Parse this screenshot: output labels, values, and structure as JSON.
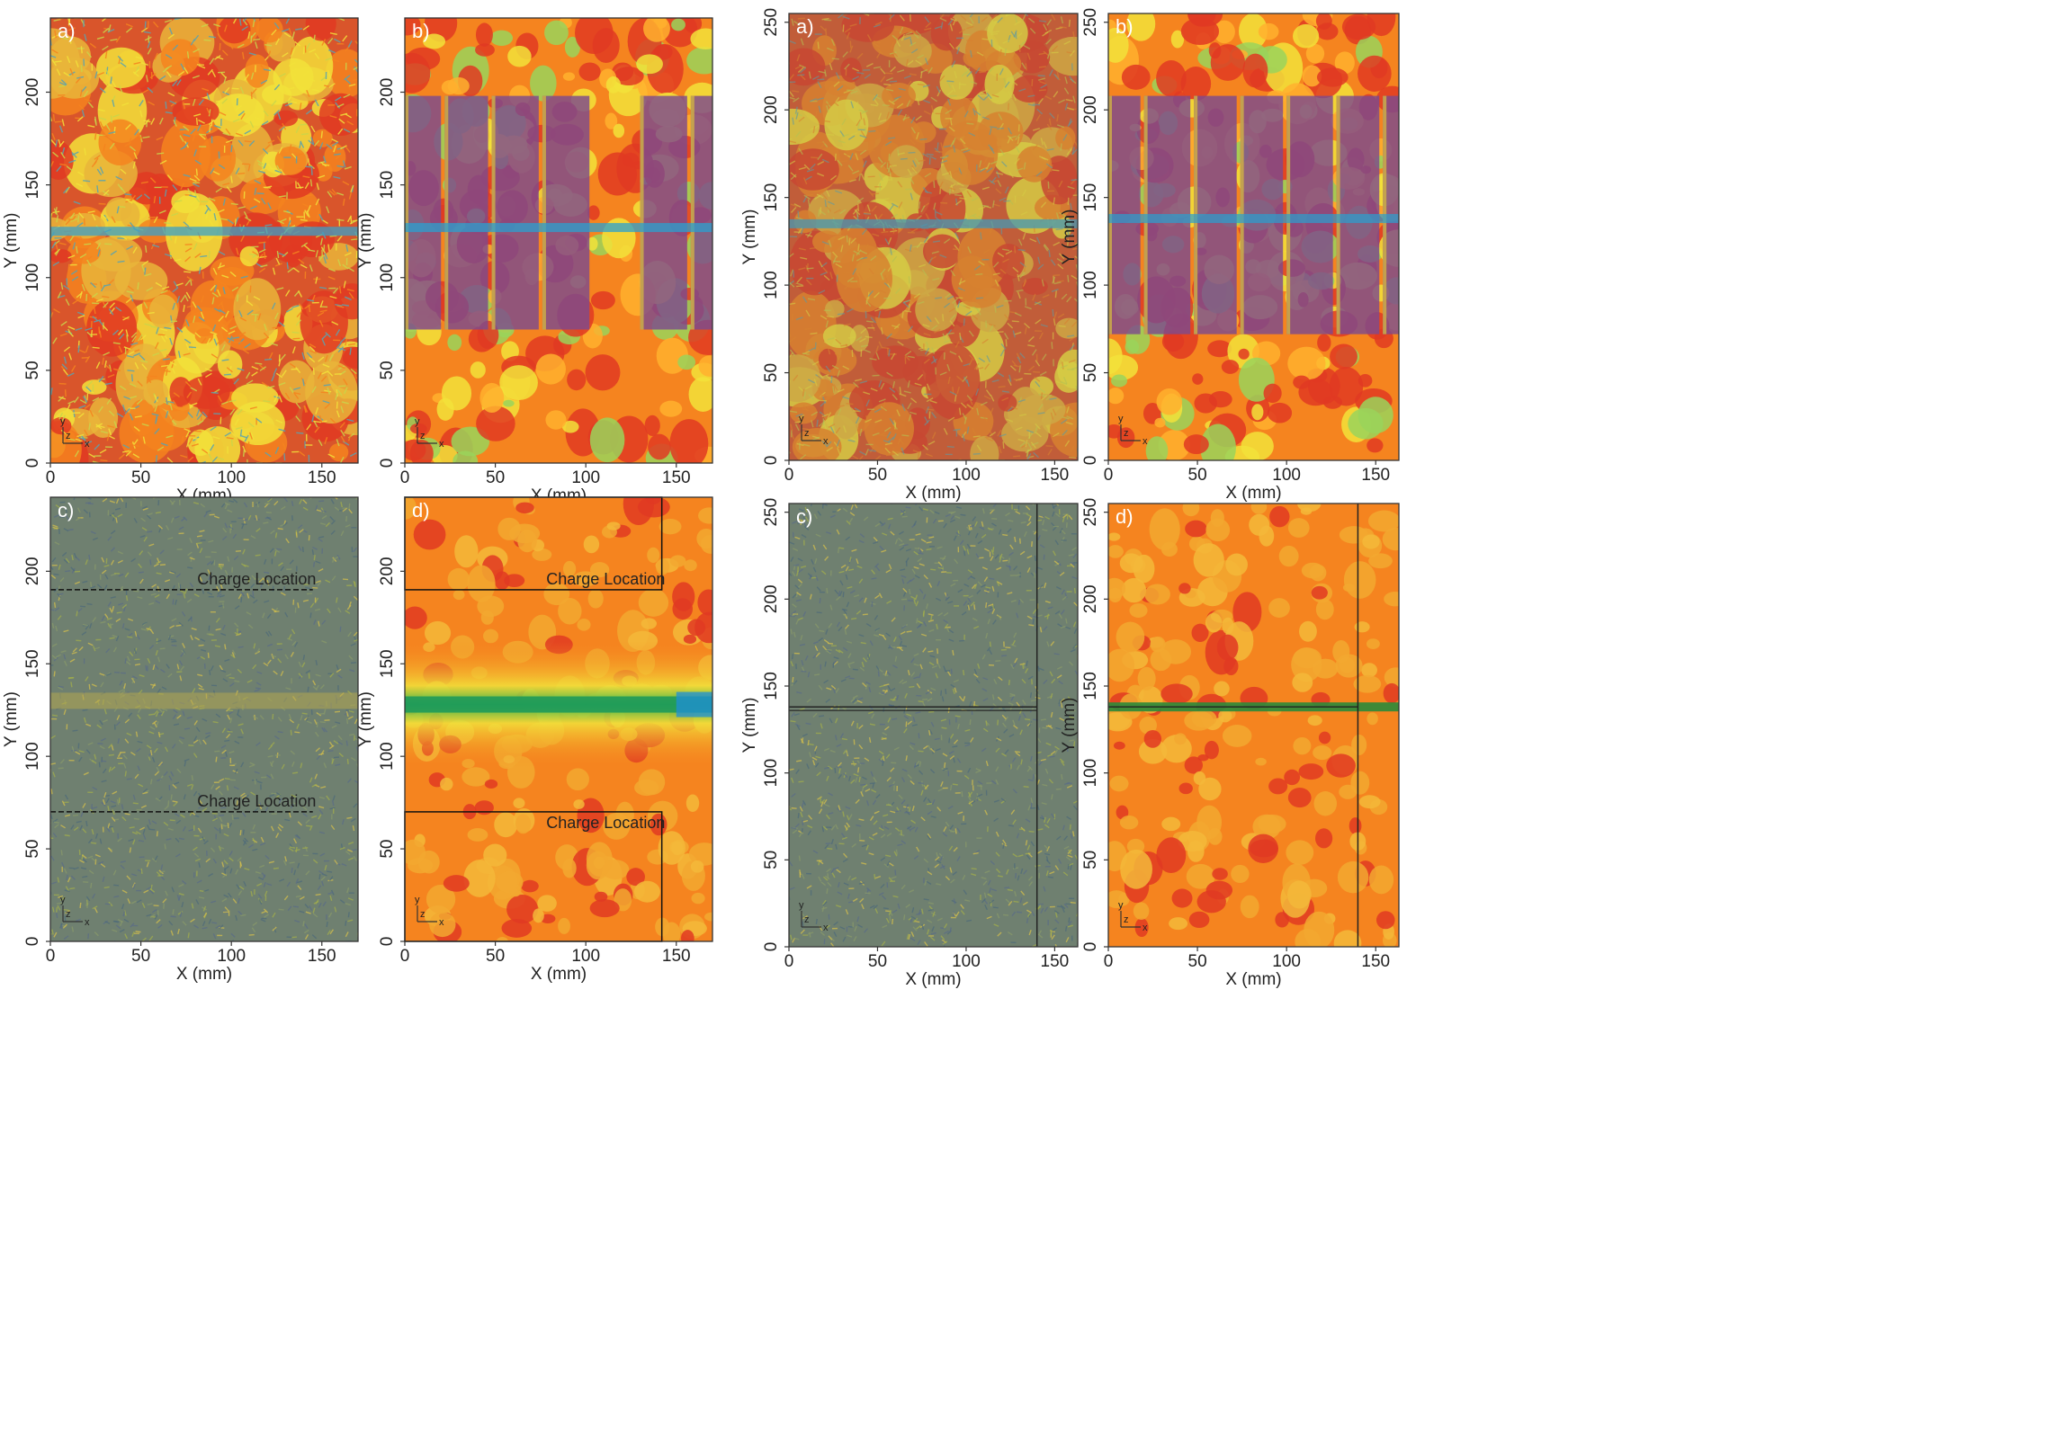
{
  "figure": {
    "left_group": {
      "panels": [
        {
          "id": "a",
          "label": "a)",
          "variant": "vector_field",
          "x_ticks": [
            "0",
            "50",
            "100",
            "150"
          ],
          "y_ticks": [
            "0",
            "50",
            "100",
            "150",
            "200"
          ],
          "xlabel": "X (mm)",
          "ylabel": "Y (mm)"
        },
        {
          "id": "b",
          "label": "b)",
          "variant": "contour_with_charges",
          "x_ticks": [
            "0",
            "50",
            "100",
            "150"
          ],
          "y_ticks": [
            "0",
            "50",
            "100",
            "150",
            "200"
          ],
          "xlabel": "X (mm)",
          "ylabel": "Y (mm)"
        },
        {
          "id": "c",
          "label": "c)",
          "variant": "noise_vector",
          "x_ticks": [
            "0",
            "50",
            "100",
            "150"
          ],
          "y_ticks": [
            "0",
            "50",
            "100",
            "150",
            "200"
          ],
          "xlabel": "X (mm)",
          "ylabel": "Y (mm)",
          "annotations": [
            "Charge Location",
            "Charge Location"
          ]
        },
        {
          "id": "d",
          "label": "d)",
          "variant": "orange_contour",
          "x_ticks": [
            "0",
            "50",
            "100",
            "150"
          ],
          "y_ticks": [
            "0",
            "50",
            "100",
            "150",
            "200"
          ],
          "xlabel": "X (mm)",
          "ylabel": "Y (mm)",
          "annotations": [
            "Charge Location",
            "Charge Location"
          ]
        }
      ]
    },
    "right_group": {
      "panels": [
        {
          "id": "a",
          "label": "a)",
          "variant": "vector_field_muted",
          "x_ticks": [
            "0",
            "50",
            "100",
            "150"
          ],
          "y_ticks": [
            "0",
            "50",
            "100",
            "150",
            "200",
            "250"
          ],
          "xlabel": "X (mm)",
          "ylabel": "Y (mm)"
        },
        {
          "id": "b",
          "label": "b)",
          "variant": "contour_with_charges_r",
          "x_ticks": [
            "0",
            "50",
            "100",
            "150"
          ],
          "y_ticks": [
            "0",
            "50",
            "100",
            "150",
            "200",
            "250"
          ],
          "xlabel": "X (mm)",
          "ylabel": "Y (mm)"
        },
        {
          "id": "c",
          "label": "c)",
          "variant": "noise_vector_r",
          "x_ticks": [
            "0",
            "50",
            "100",
            "150"
          ],
          "y_ticks": [
            "0",
            "50",
            "100",
            "150",
            "200",
            "250"
          ],
          "xlabel": "X (mm)",
          "ylabel": "Y (mm)"
        },
        {
          "id": "d",
          "label": "d)",
          "variant": "orange_contour_r",
          "x_ticks": [
            "0",
            "50",
            "100",
            "150"
          ],
          "y_ticks": [
            "0",
            "50",
            "100",
            "150",
            "200",
            "250"
          ],
          "xlabel": "X (mm)",
          "ylabel": "Y (mm)"
        }
      ]
    },
    "triad": {
      "y": "y",
      "z": "z",
      "x": "x"
    },
    "colors": {
      "red": "#e03a22",
      "orange": "#f5841f",
      "yellow": "#f2e23a",
      "green": "#2db34a",
      "blue": "#1f8fd8",
      "purple": "#7d4a8e",
      "slate": "#6f8070"
    }
  }
}
